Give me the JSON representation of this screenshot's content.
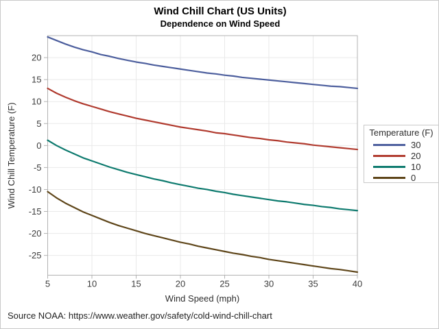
{
  "figure": {
    "title": "Wind Chill Chart (US Units)",
    "subtitle": "Dependence on Wind Speed",
    "footnote": "Source NOAA: https://www.weather.gov/safety/cold-wind-chill-chart"
  },
  "style": {
    "background": "#ffffff",
    "figure_border_color": "#c9c9c9",
    "grid_color": "#e9e9e9",
    "frame_color": "#b2b2b2",
    "tick_color": "#b2b2b2",
    "tick_label_color": "#3c3c3c",
    "axis_title_color": "#2e2e2e"
  },
  "chart_data": {
    "type": "line",
    "title": "Wind Chill Chart (US Units)",
    "subtitle": "Dependence on Wind Speed",
    "xlabel": "Wind Speed (mph)",
    "ylabel": "Wind Chill Temperature (F)",
    "xlim": [
      5,
      40
    ],
    "ylim": [
      -29.5,
      25
    ],
    "xticks": [
      5,
      10,
      15,
      20,
      25,
      30,
      35,
      40
    ],
    "yticks": [
      -25,
      -20,
      -15,
      -10,
      -5,
      0,
      5,
      10,
      15,
      20
    ],
    "grid": true,
    "legend": {
      "title": "Temperature (F)",
      "position": "right"
    },
    "x": [
      5,
      6,
      7,
      8,
      9,
      10,
      11,
      12,
      13,
      14,
      15,
      16,
      17,
      18,
      19,
      20,
      21,
      22,
      23,
      24,
      25,
      26,
      27,
      28,
      29,
      30,
      31,
      32,
      33,
      34,
      35,
      36,
      37,
      38,
      39,
      40
    ],
    "series": [
      {
        "name": "30",
        "color": "#4c5e9d",
        "values": [
          24.7,
          23.9,
          23.1,
          22.4,
          21.8,
          21.3,
          20.7,
          20.3,
          19.8,
          19.4,
          19.0,
          18.7,
          18.3,
          18.0,
          17.7,
          17.4,
          17.1,
          16.8,
          16.5,
          16.3,
          16.0,
          15.8,
          15.5,
          15.3,
          15.1,
          14.9,
          14.7,
          14.5,
          14.3,
          14.1,
          13.9,
          13.7,
          13.5,
          13.4,
          13.2,
          13.0
        ]
      },
      {
        "name": "20",
        "color": "#b03a2e",
        "values": [
          13.0,
          11.9,
          11.0,
          10.2,
          9.5,
          8.9,
          8.3,
          7.7,
          7.2,
          6.7,
          6.2,
          5.8,
          5.4,
          5.0,
          4.6,
          4.2,
          3.9,
          3.6,
          3.3,
          2.9,
          2.7,
          2.4,
          2.1,
          1.8,
          1.6,
          1.3,
          1.1,
          0.8,
          0.6,
          0.4,
          0.1,
          -0.1,
          -0.3,
          -0.5,
          -0.7,
          -0.9
        ]
      },
      {
        "name": "10",
        "color": "#0d7a6e",
        "values": [
          1.2,
          0.0,
          -1.0,
          -1.9,
          -2.8,
          -3.5,
          -4.2,
          -4.9,
          -5.5,
          -6.1,
          -6.6,
          -7.1,
          -7.6,
          -8.0,
          -8.5,
          -8.9,
          -9.3,
          -9.7,
          -10.0,
          -10.4,
          -10.7,
          -11.1,
          -11.4,
          -11.7,
          -12.0,
          -12.3,
          -12.6,
          -12.8,
          -13.1,
          -13.4,
          -13.6,
          -13.9,
          -14.1,
          -14.4,
          -14.6,
          -14.8
        ]
      },
      {
        "name": "0",
        "color": "#5e4519",
        "values": [
          -10.5,
          -11.9,
          -13.1,
          -14.1,
          -15.1,
          -15.9,
          -16.7,
          -17.5,
          -18.2,
          -18.8,
          -19.4,
          -20.0,
          -20.5,
          -21.0,
          -21.5,
          -22.0,
          -22.4,
          -22.9,
          -23.3,
          -23.7,
          -24.1,
          -24.5,
          -24.8,
          -25.2,
          -25.5,
          -25.9,
          -26.2,
          -26.5,
          -26.8,
          -27.1,
          -27.4,
          -27.7,
          -28.0,
          -28.2,
          -28.5,
          -28.8
        ]
      }
    ]
  }
}
